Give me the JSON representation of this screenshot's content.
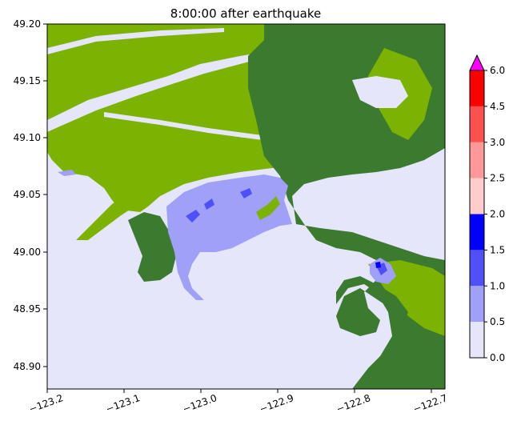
{
  "title": "8:00:00 after earthquake",
  "map": {
    "x_ticks": [
      "−123.2",
      "−123.1",
      "−123.0",
      "−122.9",
      "−122.8",
      "−122.7"
    ],
    "y_ticks": [
      "48.90",
      "48.95",
      "49.00",
      "49.05",
      "49.10",
      "49.15",
      "49.20"
    ],
    "colors": {
      "water_bg": "#e6e6fa",
      "land_low": "#7cb303",
      "land_high": "#3b7a2f",
      "inundation_light": "#a0a0f8"
    }
  },
  "colorbar": {
    "ticks": [
      "0.0",
      "0.5",
      "1.0",
      "1.5",
      "2.0",
      "2.5",
      "3.0",
      "4.5",
      "6.0"
    ],
    "bands": [
      {
        "from": 0.0,
        "to": 0.5,
        "color": "#e6e6fa"
      },
      {
        "from": 0.5,
        "to": 1.0,
        "color": "#a0a0f8"
      },
      {
        "from": 1.0,
        "to": 1.5,
        "color": "#5050f8"
      },
      {
        "from": 1.5,
        "to": 2.0,
        "color": "#0000ff"
      },
      {
        "from": 2.0,
        "to": 2.5,
        "color": "#ffcccc"
      },
      {
        "from": 2.5,
        "to": 3.0,
        "color": "#ff9999"
      },
      {
        "from": 3.0,
        "to": 4.5,
        "color": "#ff5050"
      },
      {
        "from": 4.5,
        "to": 6.0,
        "color": "#ff0000"
      }
    ],
    "extend_color": "#ff00ff"
  }
}
